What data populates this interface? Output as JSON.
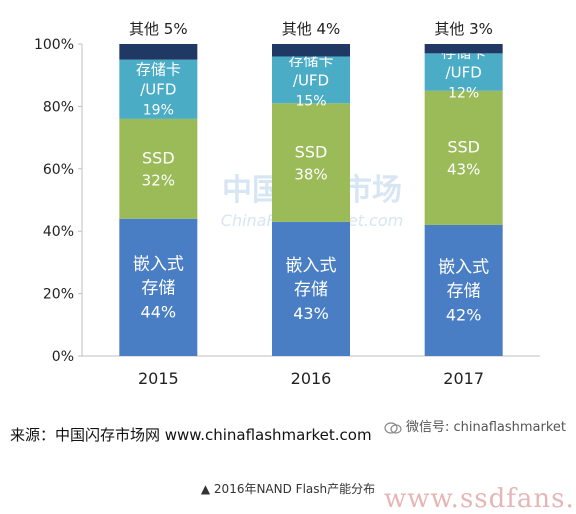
{
  "chart_data": {
    "type": "bar",
    "stacked": true,
    "categories": [
      "2015",
      "2016",
      "2017"
    ],
    "series": [
      {
        "name": "嵌入式存储",
        "label_lines": [
          "嵌入式",
          "存储"
        ],
        "values": [
          44,
          43,
          42
        ],
        "color": "#4a7ec4",
        "value_labels": [
          "44%",
          "43%",
          "42%"
        ]
      },
      {
        "name": "SSD",
        "label_lines": [
          "SSD"
        ],
        "values": [
          32,
          38,
          43
        ],
        "color": "#9bbb59",
        "value_labels": [
          "32%",
          "38%",
          "43%"
        ]
      },
      {
        "name": "存储卡/UFD",
        "label_lines": [
          "存储卡",
          "/UFD"
        ],
        "values": [
          19,
          15,
          12
        ],
        "color": "#4bacc6",
        "value_labels": [
          "19%",
          "15%",
          "12%"
        ]
      },
      {
        "name": "其他",
        "values": [
          5,
          4,
          3
        ],
        "color": "#1f3864",
        "top_labels": [
          "其他 5%",
          "其他 4%",
          "其他 3%"
        ]
      }
    ],
    "yticks": [
      "0%",
      "20%",
      "40%",
      "60%",
      "80%",
      "100%"
    ],
    "ylim": [
      0,
      100
    ],
    "grid": false,
    "background_watermark": {
      "main": "中国闪存市场",
      "sub": "ChinaFlashMarket.com"
    }
  },
  "source_text": "来源：中国闪存市场网 www.chinaflashmarket.com",
  "wechat_text": "微信号: chinaflashmarket",
  "caption": "▲ 2016年NAND Flash产能分布",
  "watermark": "www.ssdfans.com"
}
